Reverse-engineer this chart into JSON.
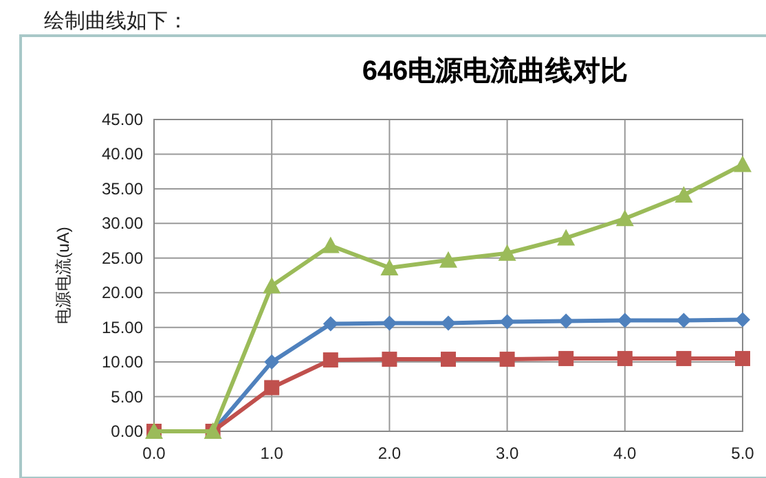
{
  "chart_data": {
    "type": "line",
    "title": "646电源电流曲线对比",
    "ylabel": "电源电流(uA)",
    "annotations": [
      "绘制曲线如下："
    ],
    "x": [
      0,
      0.5,
      1.0,
      1.5,
      2.0,
      2.5,
      3.0,
      3.5,
      4.0,
      4.5,
      5.0
    ],
    "xlim": [
      0,
      5
    ],
    "xticks": [
      {
        "value": 0,
        "label": "0.0"
      },
      {
        "value": 1,
        "label": "1.0"
      },
      {
        "value": 2,
        "label": "2.0"
      },
      {
        "value": 3,
        "label": "3.0"
      },
      {
        "value": 4,
        "label": "4.0"
      },
      {
        "value": 5,
        "label": "5.0"
      }
    ],
    "ylim": [
      0,
      45
    ],
    "yticks": [
      {
        "value": 0,
        "label": "0.00"
      },
      {
        "value": 5,
        "label": "5.00"
      },
      {
        "value": 10,
        "label": "10.00"
      },
      {
        "value": 15,
        "label": "15.00"
      },
      {
        "value": 20,
        "label": "20.00"
      },
      {
        "value": 25,
        "label": "25.00"
      },
      {
        "value": 30,
        "label": "30.00"
      },
      {
        "value": 35,
        "label": "35.00"
      },
      {
        "value": 40,
        "label": "40.00"
      },
      {
        "value": 45,
        "label": "45.00"
      }
    ],
    "grid": true,
    "line_style": "solid",
    "series": [
      {
        "color": "#4f81bd",
        "marker": "diamond",
        "values": [
          0,
          0,
          10.0,
          15.5,
          15.6,
          15.6,
          15.8,
          15.9,
          16.0,
          16.0,
          16.1
        ]
      },
      {
        "color": "#c0504d",
        "marker": "square",
        "values": [
          0,
          0,
          6.3,
          10.3,
          10.4,
          10.4,
          10.4,
          10.5,
          10.5,
          10.5,
          10.5
        ]
      },
      {
        "color": "#9bbb59",
        "marker": "triangle",
        "values": [
          0,
          0,
          21.0,
          26.8,
          23.6,
          24.7,
          25.7,
          27.9,
          30.7,
          34.1,
          38.5
        ]
      }
    ]
  }
}
